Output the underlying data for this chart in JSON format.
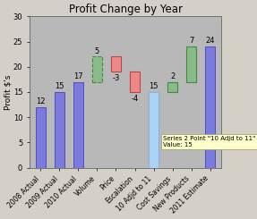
{
  "title": "Profit Change by Year",
  "ylabel": "Profit $'s",
  "categories": [
    "2008 Actual",
    "2009 Actual",
    "2010 Actual",
    "Volume",
    "Price",
    "Escalation",
    "10 Adjd to 11",
    "Cost Savings",
    "New Products",
    "2011 Estimate"
  ],
  "values": [
    12,
    15,
    17,
    5,
    -3,
    -4,
    15,
    2,
    7,
    24
  ],
  "bar_types": [
    "solid",
    "solid",
    "solid",
    "waterfall_pos_dash",
    "waterfall_neg",
    "waterfall_neg",
    "solid_light",
    "waterfall_pos",
    "waterfall_pos",
    "solid"
  ],
  "bottoms": [
    0,
    0,
    0,
    17,
    19,
    15,
    0,
    15,
    17,
    0
  ],
  "heights": [
    12,
    15,
    17,
    5,
    3,
    4,
    15,
    2,
    7,
    24
  ],
  "ylim": [
    0,
    30
  ],
  "yticks": [
    0,
    5,
    10,
    15,
    20,
    25,
    30
  ],
  "fig_bg_color": "#d4d0c8",
  "plot_bg_color": "#b8b8b8",
  "solid_blue_face": "#7b7bdd",
  "solid_blue_edge": "#4444bb",
  "solid_blue_light_face": "#aad4f5",
  "solid_blue_light_edge": "#88aadd",
  "waterfall_pos_face": "#88bb88",
  "waterfall_pos_edge": "#448844",
  "waterfall_neg_face": "#ee8888",
  "waterfall_neg_edge": "#bb4444",
  "tooltip_text": "Series 2 Point \"10 Adjd to 11\"\nValue: 15",
  "bar_width": 0.55,
  "label_fontsize": 6,
  "tick_fontsize": 5.5,
  "title_fontsize": 8.5,
  "ylabel_fontsize": 6.5
}
